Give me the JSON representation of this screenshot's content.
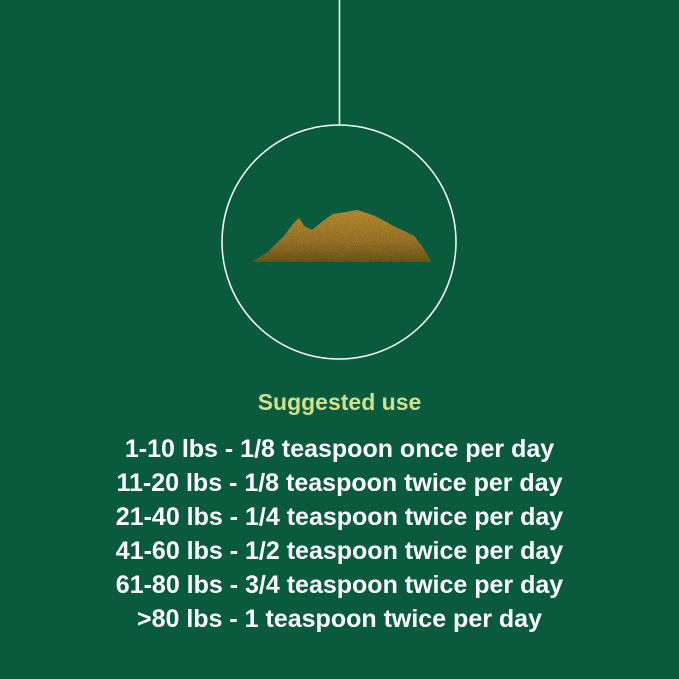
{
  "colors": {
    "background": "#0a5a3e",
    "title": "#cfe08f",
    "text": "#ffffff",
    "powder": "#b38a2a"
  },
  "image": {
    "subject": "powder-pile-in-circle"
  },
  "heading": "Suggested use",
  "dosage": [
    "1-10 lbs - 1/8 teaspoon once per day",
    "11-20 lbs - 1/8 teaspoon twice per day",
    "21-40 lbs - 1/4 teaspoon twice per day",
    "41-60 lbs - 1/2 teaspoon twice per day",
    "61-80 lbs - 3/4 teaspoon twice per day",
    ">80 lbs - 1 teaspoon twice per day"
  ]
}
